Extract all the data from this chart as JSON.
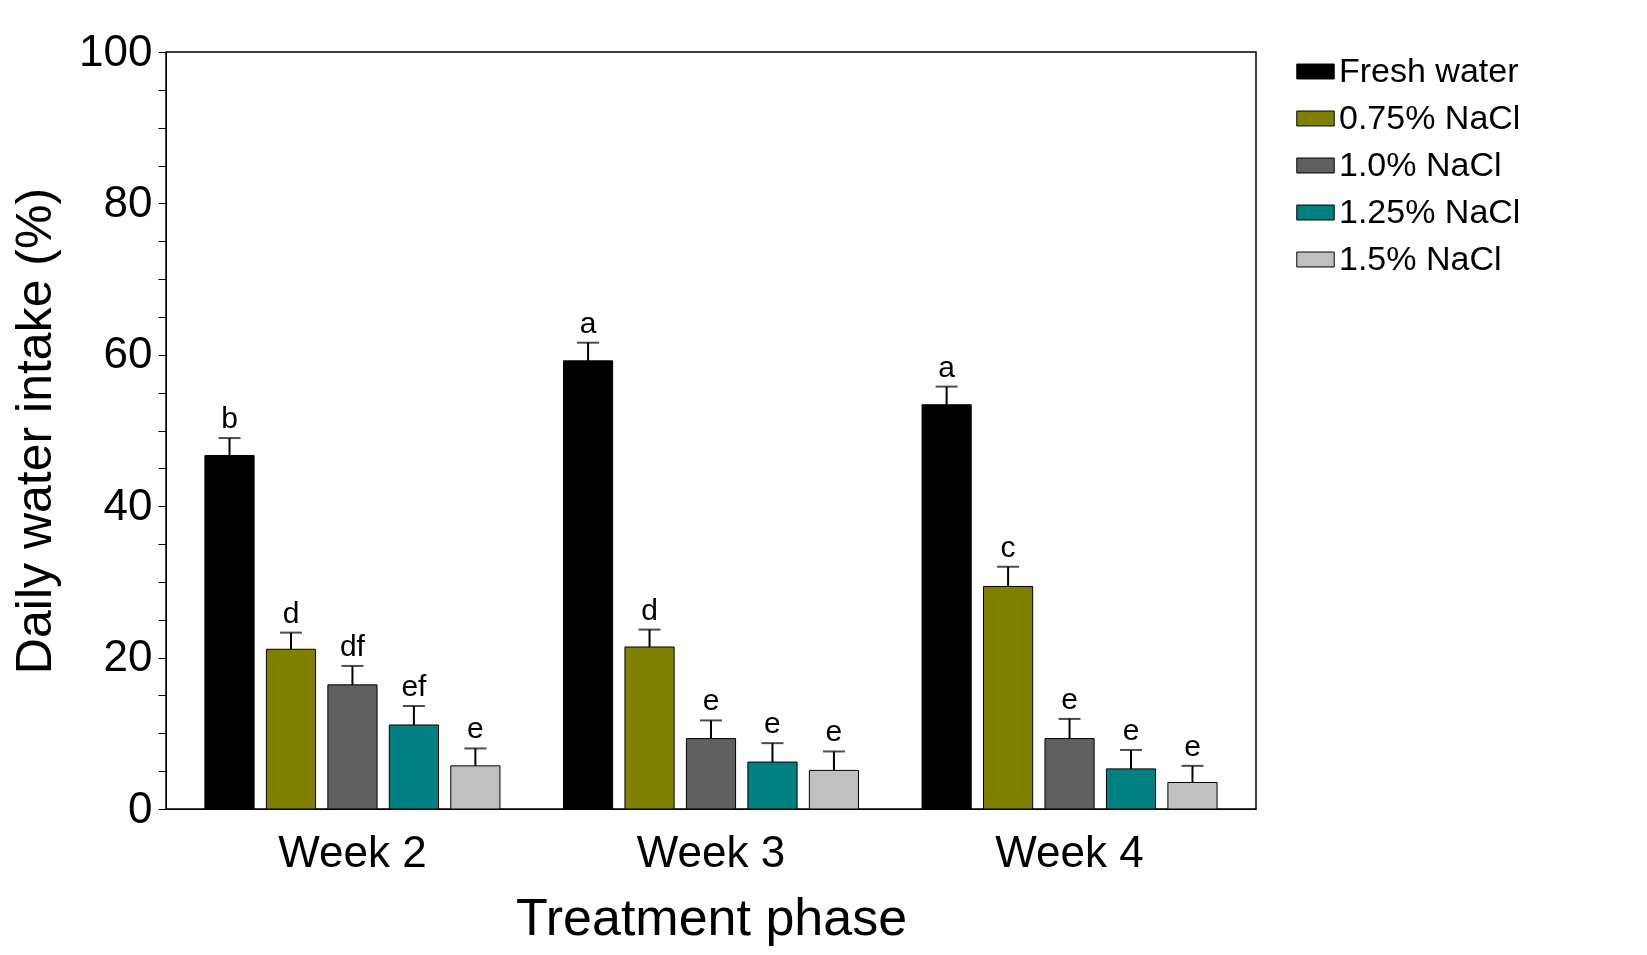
{
  "chart_data": {
    "type": "bar",
    "xlabel": "Treatment phase",
    "ylabel": "Daily water intake (%)",
    "categories": [
      "Week 2",
      "Week 3",
      "Week 4"
    ],
    "series": [
      {
        "name": "Fresh water",
        "color": "#000000",
        "values": [
          46.7,
          59.2,
          53.4
        ],
        "errors": [
          [
            46.7,
            49.0
          ],
          [
            59.2,
            61.6
          ],
          [
            53.4,
            55.8
          ]
        ],
        "value_labels": [
          "b",
          "a",
          "a"
        ]
      },
      {
        "name": "0.75% NaCl",
        "color": "#808000",
        "values": [
          21.1,
          21.4,
          29.4
        ],
        "errors": [
          [
            21.1,
            23.3
          ],
          [
            21.4,
            23.7
          ],
          [
            29.4,
            32.0
          ]
        ],
        "value_labels": [
          "d",
          "d",
          "c"
        ]
      },
      {
        "name": "1.0% NaCl",
        "color": "#606060",
        "values": [
          16.4,
          9.3,
          9.3
        ],
        "errors": [
          [
            16.4,
            18.9
          ],
          [
            9.3,
            11.7
          ],
          [
            9.3,
            11.9
          ]
        ],
        "value_labels": [
          "df",
          "e",
          "e"
        ]
      },
      {
        "name": "1.25% NaCl",
        "color": "#008080",
        "values": [
          11.1,
          6.2,
          5.3
        ],
        "errors": [
          [
            11.1,
            13.6
          ],
          [
            6.2,
            8.7
          ],
          [
            5.3,
            7.8
          ]
        ],
        "value_labels": [
          "ef",
          "e",
          "e"
        ]
      },
      {
        "name": "1.5% NaCl",
        "color": "#c0c0c0",
        "values": [
          5.7,
          5.1,
          3.5
        ],
        "errors": [
          [
            5.7,
            8.0
          ],
          [
            5.1,
            7.6
          ],
          [
            3.5,
            5.7
          ]
        ],
        "value_labels": [
          "e",
          "e",
          "e"
        ]
      }
    ],
    "ylim": [
      0,
      100
    ],
    "yticks": [
      0,
      {
        "value": 5,
        "label": null
      },
      {
        "value": 10,
        "label": null
      },
      {
        "value": 15,
        "label": null
      },
      20,
      {
        "value": 25,
        "label": null
      },
      {
        "value": 30,
        "label": null
      },
      {
        "value": 35,
        "label": null
      },
      40,
      {
        "value": 45,
        "label": null
      },
      {
        "value": 50,
        "label": null
      },
      {
        "value": 55,
        "label": null
      },
      60,
      {
        "value": 65,
        "label": null
      },
      {
        "value": 70,
        "label": null
      },
      {
        "value": 75,
        "label": null
      },
      80,
      {
        "value": 85,
        "label": null
      },
      {
        "value": 90,
        "label": null
      },
      {
        "value": 95,
        "label": null
      },
      100
    ],
    "grid": false,
    "legend": "top right"
  }
}
